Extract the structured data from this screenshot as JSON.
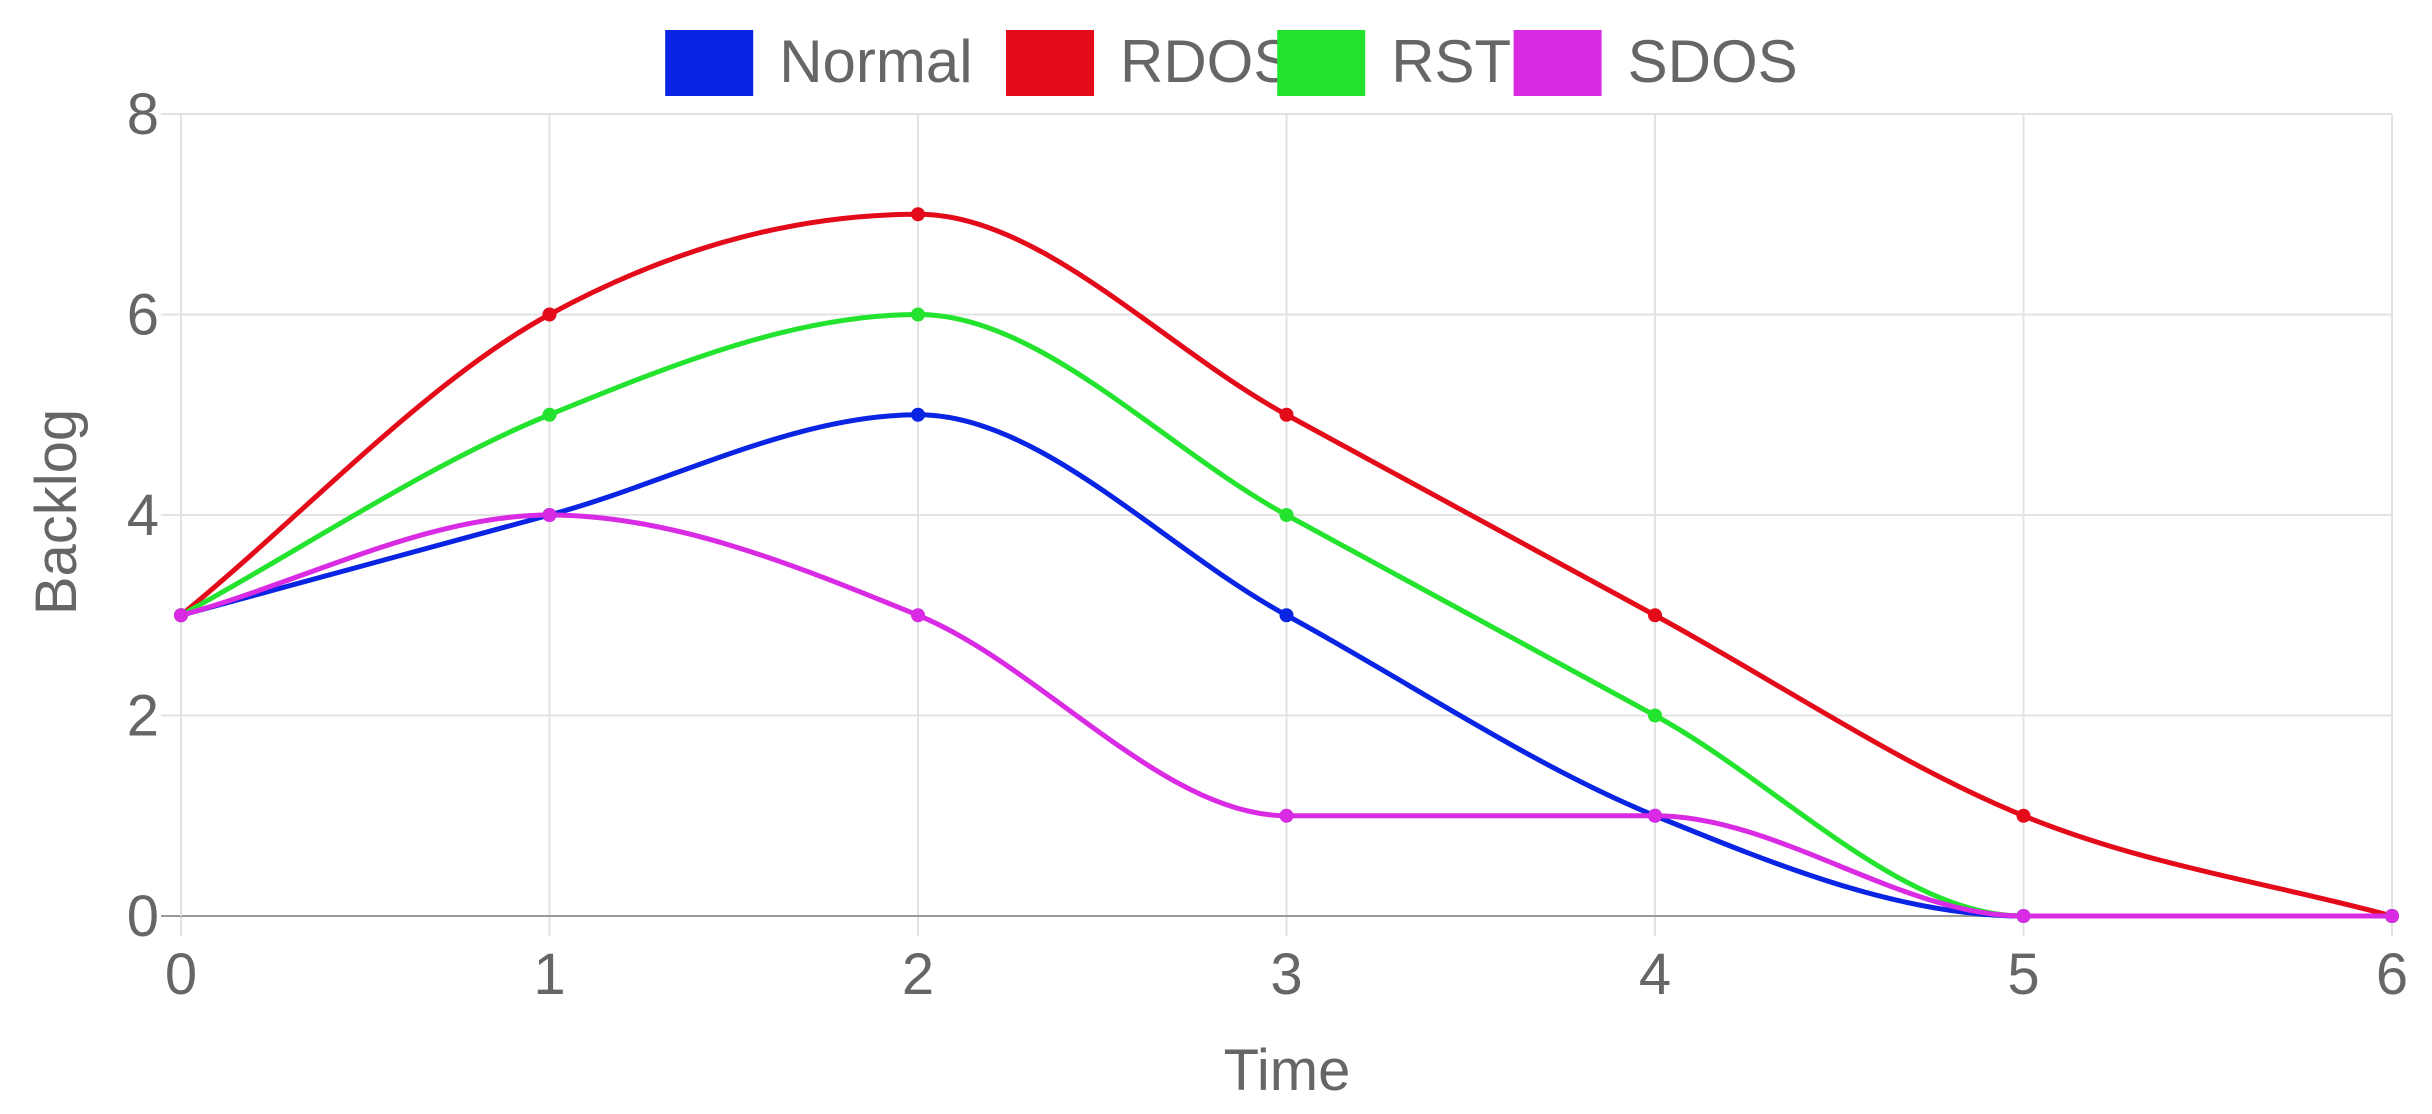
{
  "chart_data": {
    "type": "line",
    "x": [
      0,
      1,
      2,
      3,
      4,
      5,
      6
    ],
    "xlabel": "Time",
    "ylabel": "Backlog",
    "xlim": [
      0,
      6
    ],
    "ylim": [
      0,
      8
    ],
    "x_ticks": [
      "0",
      "1",
      "2",
      "3",
      "4",
      "5",
      "6"
    ],
    "y_ticks": [
      "0",
      "2",
      "4",
      "6",
      "8"
    ],
    "grid": true,
    "legend_position": "top-center",
    "smooth": true,
    "series": [
      {
        "name": "Normal",
        "color": "#0a24e3",
        "values": [
          3,
          4,
          5,
          3,
          1,
          0,
          0
        ]
      },
      {
        "name": "RDOS",
        "color": "#e30a19",
        "values": [
          3,
          6,
          7,
          5,
          3,
          1,
          0
        ]
      },
      {
        "name": "RST",
        "color": "#24e32e",
        "values": [
          3,
          5,
          6,
          4,
          2,
          0,
          0
        ]
      },
      {
        "name": "SDOS",
        "color": "#d92be3",
        "values": [
          3,
          4,
          3,
          1,
          1,
          0,
          0
        ]
      }
    ]
  }
}
